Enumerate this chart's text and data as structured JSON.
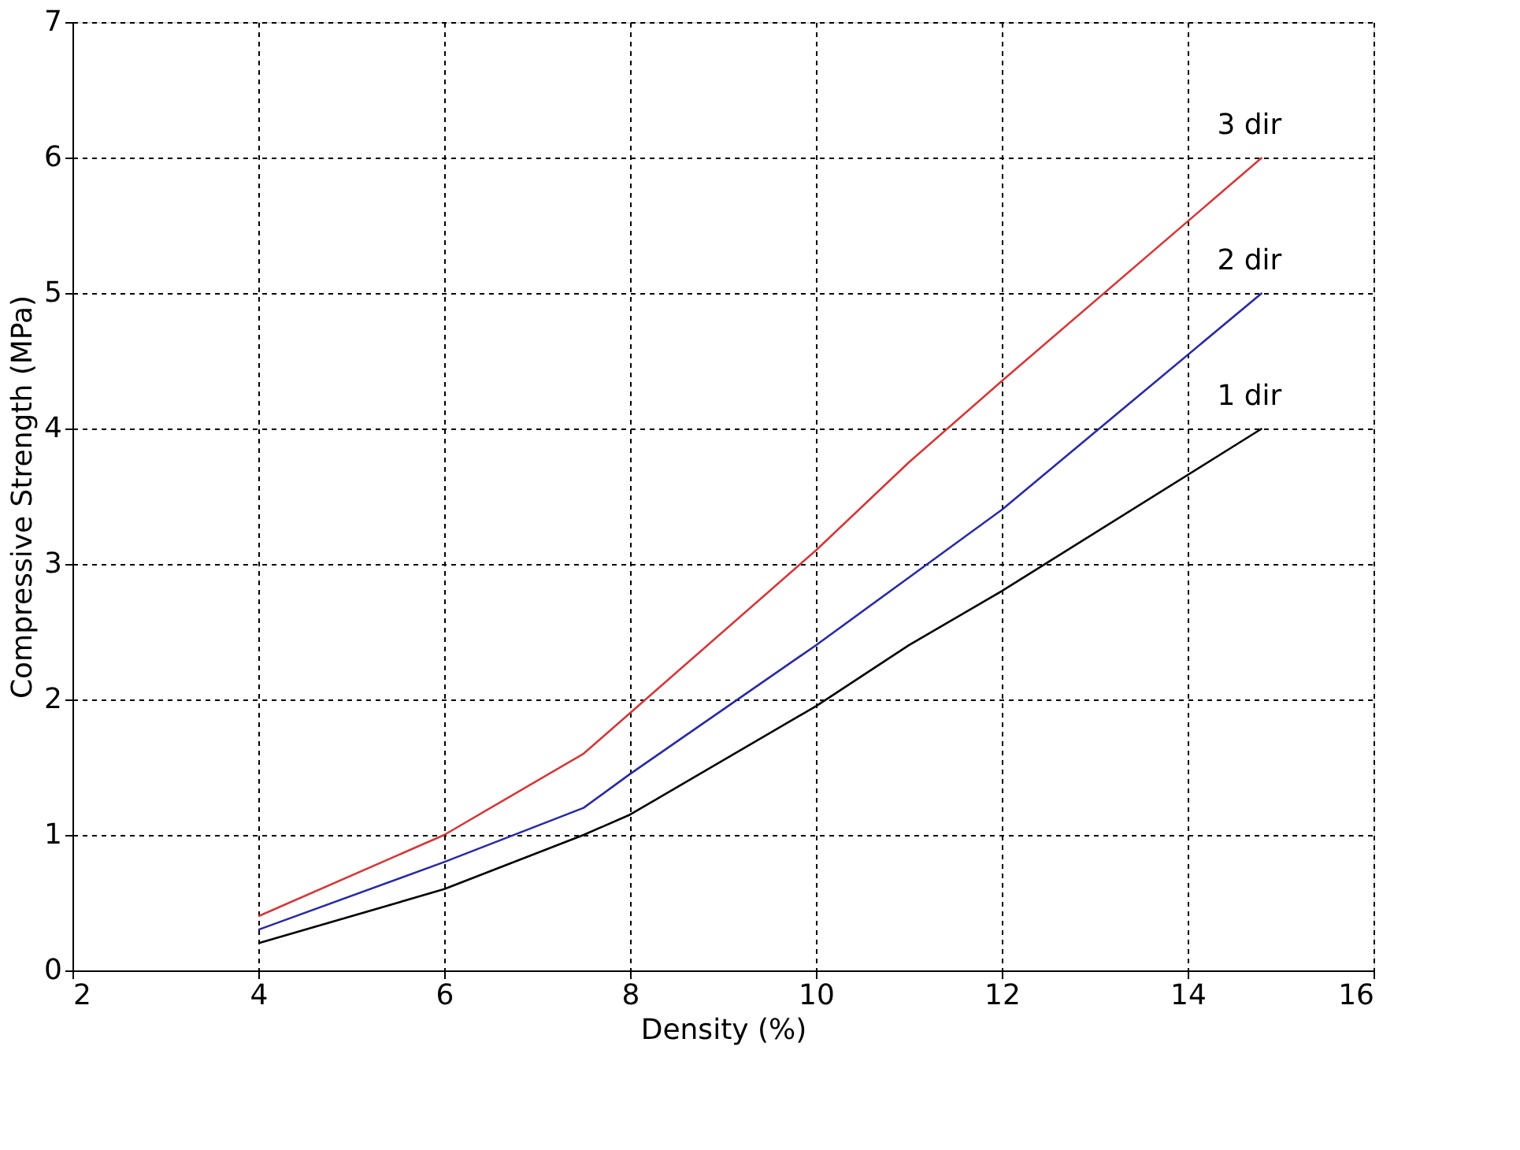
{
  "chart_data": {
    "type": "line",
    "xlabel": "Density (%)",
    "ylabel": "Compressive Strength (MPa)",
    "xlim": [
      2,
      16
    ],
    "xticks": [
      2,
      4,
      6,
      8,
      10,
      12,
      14,
      16
    ],
    "ylim": [
      0,
      7
    ],
    "yticks": [
      0,
      1,
      2,
      3,
      4,
      5,
      6,
      7
    ],
    "grid": true,
    "line_style": "solid",
    "marker": "none",
    "legend": false,
    "series": [
      {
        "name": "1 dir",
        "color": "#000000",
        "x": [
          4,
          6,
          7.5,
          8,
          10,
          11,
          12,
          14.8
        ],
        "values": [
          0.2,
          0.6,
          1.0,
          1.15,
          1.95,
          2.4,
          2.8,
          4.0
        ]
      },
      {
        "name": "2 dir",
        "color": "#2a2aa0",
        "x": [
          4,
          6,
          7.5,
          8,
          10,
          11,
          12,
          14.8
        ],
        "values": [
          0.3,
          0.8,
          1.2,
          1.45,
          2.4,
          2.9,
          3.4,
          5.0
        ]
      },
      {
        "name": "3 dir",
        "color": "#d03a3a",
        "x": [
          4,
          6,
          7.5,
          8,
          10,
          11,
          12,
          14.8
        ],
        "values": [
          0.4,
          1.0,
          1.6,
          1.9,
          3.1,
          3.75,
          4.35,
          6.0
        ]
      }
    ]
  }
}
